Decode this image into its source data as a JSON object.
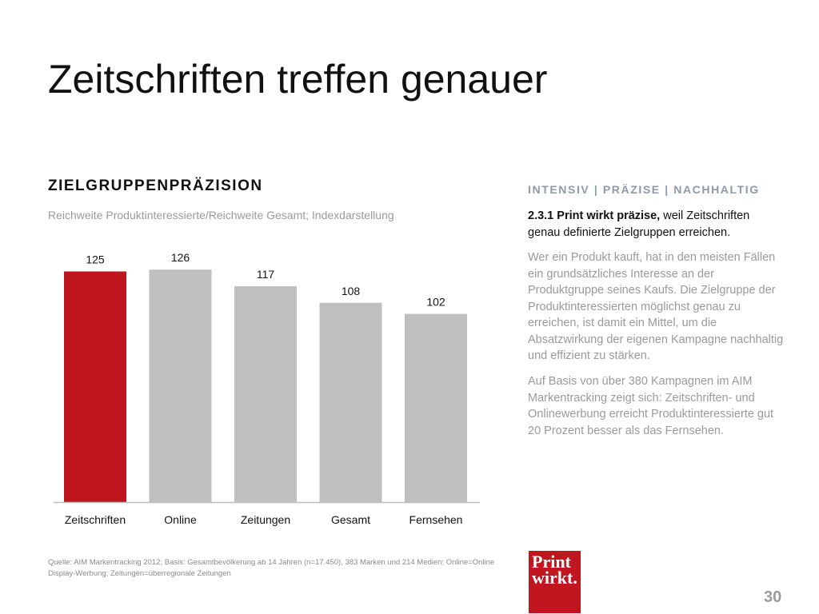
{
  "slide": {
    "title": "Zeitschriften treffen genauer",
    "section_heading": "ZIELGRUPPENPRÄZISION",
    "subtitle": "Reichweite Produktinteressierte/Reichweite Gesamt; Indexdarstellung",
    "page_number": "30"
  },
  "right": {
    "heading": "INTENSIV | PRÄZISE | NACHHALTIG",
    "intro_bold": "2.3.1 Print wirkt präzise,",
    "intro_rest": " weil Zeitschriften genau definierte Zielgruppen erreichen.",
    "paragraph1": "Wer ein Produkt kauft, hat in den meisten Fällen ein grundsätzliches Interesse an der Produktgruppe seines Kaufs. Die Zielgruppe der Produktinteressierten möglichst genau zu erreichen, ist damit ein Mittel, um die Absatzwirkung der eigenen Kampagne nachhaltig und effizient zu stärken.",
    "paragraph2": "Auf Basis von über 380 Kampagnen im AIM Markentracking zeigt sich: Zeitschriften- und Onlinewerbung erreicht Produktinteressierte gut 20 Prozent besser als das Fernsehen."
  },
  "footnote": "Quelle: AIM Markentracking 2012; Basis: Gesamtbevölkerung ab 14 Jahren (n=17.450), 383 Marken und 214 Medien; Online=Online Display-Werbung; Zeitungen=überregionale Zeitungen",
  "logo": {
    "line1": "Print",
    "line2": "wirkt."
  },
  "colors": {
    "highlight": "#c0161f",
    "bar": "#bfbfbf",
    "axis": "#bdbdbd"
  },
  "chart_data": {
    "type": "bar",
    "categories": [
      "Zeitschriften",
      "Online",
      "Zeitungen",
      "Gesamt",
      "Fernsehen"
    ],
    "values": [
      125,
      126,
      117,
      108,
      102
    ],
    "highlight_index": 0,
    "title": "",
    "xlabel": "",
    "ylabel": "",
    "ylim": [
      0,
      130
    ],
    "grid": false,
    "legend": "none"
  }
}
